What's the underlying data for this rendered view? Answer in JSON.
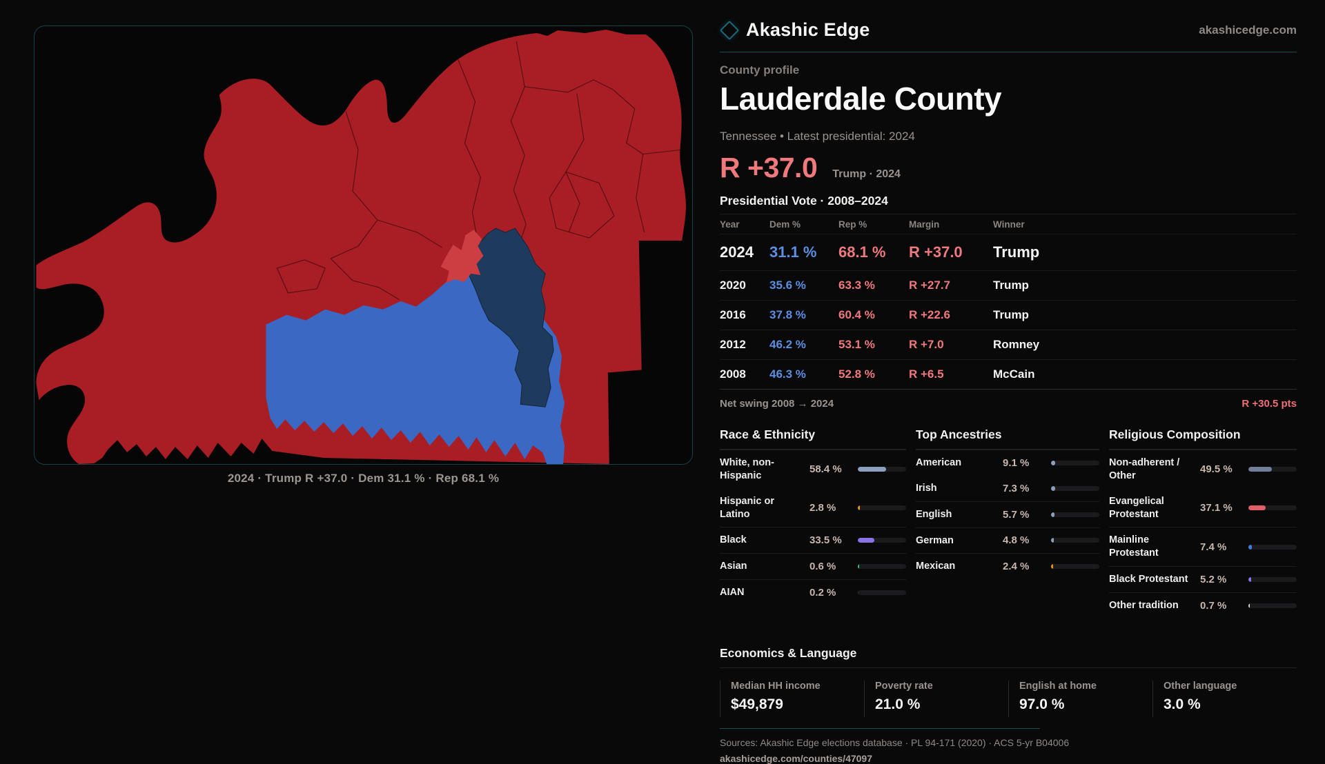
{
  "brand": {
    "name": "Akashic Edge",
    "domain": "akashicedge.com"
  },
  "profile": {
    "kicker": "County profile",
    "title": "Lauderdale County",
    "subtitle": "Tennessee • Latest presidential: 2024",
    "headline_margin": "R +37.0",
    "headline_note": "Trump · 2024"
  },
  "map": {
    "caption": "2024 · Trump R +37.0 · Dem 31.1 % · Rep 68.1 %"
  },
  "vote_table": {
    "title": "Presidential Vote · 2008–2024",
    "columns": [
      "Year",
      "Dem %",
      "Rep %",
      "Margin",
      "Winner"
    ],
    "rows": [
      {
        "year": "2024",
        "dem": "31.1 %",
        "rep": "68.1 %",
        "margin": "R +37.0",
        "winner": "Trump"
      },
      {
        "year": "2020",
        "dem": "35.6 %",
        "rep": "63.3 %",
        "margin": "R +27.7",
        "winner": "Trump"
      },
      {
        "year": "2016",
        "dem": "37.8 %",
        "rep": "60.4 %",
        "margin": "R +22.6",
        "winner": "Trump"
      },
      {
        "year": "2012",
        "dem": "46.2 %",
        "rep": "53.1 %",
        "margin": "R +7.0",
        "winner": "Romney"
      },
      {
        "year": "2008",
        "dem": "46.3 %",
        "rep": "52.8 %",
        "margin": "R +6.5",
        "winner": "McCain"
      }
    ],
    "net_swing_label": "Net swing 2008 → 2024",
    "net_swing_value": "R +30.5 pts"
  },
  "demographics": {
    "race": {
      "title": "Race & Ethnicity",
      "rows": [
        {
          "label": "White, non-Hispanic",
          "value": "58.4 %",
          "bar_pct": 58,
          "bar_color": "#8C9FBC"
        },
        {
          "label": "Hispanic or Latino",
          "value": "2.8 %",
          "bar_pct": 4,
          "bar_color": "#E8941F"
        },
        {
          "label": "Black",
          "value": "33.5 %",
          "bar_pct": 34,
          "bar_color": "#8B72E8"
        },
        {
          "label": "Asian",
          "value": "0.6 %",
          "bar_pct": 3,
          "bar_color": "#2EC983"
        },
        {
          "label": "AIAN",
          "value": "0.2 %",
          "bar_pct": 1,
          "bar_color": "#323338"
        }
      ]
    },
    "ancestry": {
      "title": "Top Ancestries",
      "rows": [
        {
          "label": "American",
          "value": "9.1 %",
          "bar_pct": 9,
          "bar_color": "#8C9FBC"
        },
        {
          "label": "Irish",
          "value": "7.3 %",
          "bar_pct": 8,
          "bar_color": "#8C9FBC"
        },
        {
          "label": "English",
          "value": "5.7 %",
          "bar_pct": 7,
          "bar_color": "#8C9FBC"
        },
        {
          "label": "German",
          "value": "4.8 %",
          "bar_pct": 6,
          "bar_color": "#8C9FBC"
        },
        {
          "label": "Mexican",
          "value": "2.4 %",
          "bar_pct": 4,
          "bar_color": "#E8941F"
        }
      ]
    },
    "religion": {
      "title": "Religious Composition",
      "rows": [
        {
          "label": "Non-adherent / Other",
          "value": "49.5 %",
          "bar_pct": 48,
          "bar_color": "#6F7E99"
        },
        {
          "label": "Evangelical Protestant",
          "value": "37.1 %",
          "bar_pct": 36,
          "bar_color": "#E0606A"
        },
        {
          "label": "Mainline Protestant",
          "value": "7.4 %",
          "bar_pct": 7,
          "bar_color": "#3C7CE0"
        },
        {
          "label": "Black Protestant",
          "value": "5.2 %",
          "bar_pct": 6,
          "bar_color": "#8B72E8"
        },
        {
          "label": "Other tradition",
          "value": "0.7 %",
          "bar_pct": 3,
          "bar_color": "#D9D9D9"
        }
      ]
    }
  },
  "economics": {
    "title": "Economics & Language",
    "stats": [
      {
        "label": "Median HH income",
        "value": "$49,879"
      },
      {
        "label": "Poverty rate",
        "value": "21.0 %"
      },
      {
        "label": "English at home",
        "value": "97.0 %"
      },
      {
        "label": "Other language",
        "value": "3.0 %"
      }
    ]
  },
  "footer": {
    "sources": "Sources: Akashic Edge elections database · PL 94-171 (2020) · ACS 5-yr B04006",
    "permalink": "akashicedge.com/counties/47097"
  },
  "colors": {
    "accent_teal": "#1d6b7a",
    "dem_blue": "#5B8FE3",
    "rep_red": "#F0797E",
    "map_red": "#A81E24",
    "map_highlight_red": "#CC3E41",
    "map_navy": "#1E3A5C",
    "map_blue": "#3A68C3"
  }
}
